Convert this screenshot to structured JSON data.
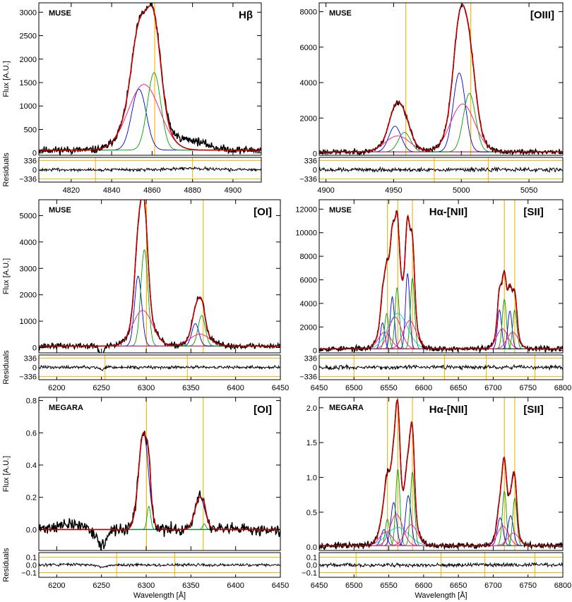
{
  "figure": {
    "xlabel": "Wavelength [Å]"
  },
  "colors": {
    "data": "#000000",
    "total_fit": "#c00000",
    "narrow": "#0000dd",
    "second": "#00a000",
    "broad": "#ff2288",
    "extra": "#00d0d0",
    "marker": "#f0b400",
    "continuum": "#3366ff"
  },
  "chart_data": [
    {
      "type": "line",
      "panel": "hb",
      "instrument": "MUSE",
      "line_label": "Hβ",
      "ylabel": "Flux [A.U.]",
      "residual_label": "Residuals",
      "xlim": [
        4804,
        4914
      ],
      "ylim": [
        -50,
        3200
      ],
      "xticks": [
        4820,
        4840,
        4860,
        4880,
        4900
      ],
      "xticklabels": [
        "4820",
        "4840",
        "4860",
        "4880",
        "4900"
      ],
      "yticks": [
        0,
        500,
        1000,
        1500,
        2000,
        2500,
        3000
      ],
      "yticklabels": [
        "0",
        "500",
        "1000",
        "1500",
        "2000",
        "2500",
        "3000"
      ],
      "markers": [
        4861.3
      ],
      "res_lim": [
        -450,
        450
      ],
      "res_ticks": [
        336,
        0,
        -336
      ],
      "res_ticklabels": [
        "336",
        "0",
        "−336"
      ],
      "res_markers": [
        4832,
        4880
      ],
      "components": [
        {
          "role": "narrow",
          "amp": 1300,
          "center": 4853.5,
          "sigma": 3.6
        },
        {
          "role": "second",
          "amp": 1650,
          "center": 4861.0,
          "sigma": 3.3
        },
        {
          "role": "broad",
          "amp": 1400,
          "center": 4856.0,
          "sigma": 7.8
        }
      ],
      "continuum": 60,
      "noise": 40,
      "noise_seed": 11,
      "res_noise": 70,
      "extra_features": [
        {
          "center": 4879,
          "amp": 200,
          "sigma": 8
        }
      ]
    },
    {
      "type": "line",
      "panel": "oiii",
      "instrument": "MUSE",
      "line_label": "[OIII]",
      "ylabel": "",
      "residual_label": "",
      "xlim": [
        4895,
        5075
      ],
      "ylim": [
        -100,
        8500
      ],
      "xticks": [
        4900,
        4950,
        5000,
        5050
      ],
      "xticklabels": [
        "4900",
        "4950",
        "5000",
        "5050"
      ],
      "yticks": [
        0,
        2000,
        4000,
        6000,
        8000
      ],
      "yticklabels": [
        "0",
        "2000",
        "4000",
        "6000",
        "8000"
      ],
      "markers": [
        4959,
        5007
      ],
      "res_lim": [
        -450,
        450
      ],
      "res_ticks": [
        336,
        0,
        -336
      ],
      "res_ticklabels": [
        "336",
        "0",
        "−336"
      ],
      "res_markers": [
        4980,
        5020
      ],
      "components": [
        {
          "role": "narrow",
          "amp": 1450,
          "center": 4951,
          "sigma": 4.5
        },
        {
          "role": "second",
          "amp": 1100,
          "center": 4958,
          "sigma": 4.5
        },
        {
          "role": "broad",
          "amp": 900,
          "center": 4953,
          "sigma": 9
        },
        {
          "role": "narrow",
          "amp": 4450,
          "center": 4998.5,
          "sigma": 4.5
        },
        {
          "role": "second",
          "amp": 3300,
          "center": 5006,
          "sigma": 4.5
        },
        {
          "role": "broad",
          "amp": 2700,
          "center": 5001,
          "sigma": 9
        }
      ],
      "continuum": 90,
      "noise": 70,
      "noise_seed": 23,
      "res_noise": 90,
      "extra_features": []
    },
    {
      "type": "line",
      "panel": "oi_muse",
      "instrument": "MUSE",
      "line_label": "[OI]",
      "ylabel": "Flux [A.U.]",
      "residual_label": "Residuals",
      "xlim": [
        6180,
        6450
      ],
      "ylim": [
        -200,
        5600
      ],
      "xticks": [
        6200,
        6250,
        6300,
        6350,
        6400,
        6450
      ],
      "xticklabels": [
        "6200",
        "6250",
        "6300",
        "6350",
        "6400",
        "6450"
      ],
      "yticks": [
        0,
        1000,
        2000,
        3000,
        4000,
        5000
      ],
      "yticklabels": [
        "0",
        "1000",
        "2000",
        "3000",
        "4000",
        "5000"
      ],
      "markers": [
        6300.3,
        6363.8
      ],
      "res_lim": [
        -450,
        450
      ],
      "res_ticks": [
        336,
        0,
        -336
      ],
      "res_ticklabels": [
        "336",
        "0",
        "−336"
      ],
      "res_markers": [
        6254,
        6346
      ],
      "components": [
        {
          "role": "narrow",
          "amp": 2650,
          "center": 6291,
          "sigma": 4
        },
        {
          "role": "second",
          "amp": 3650,
          "center": 6298,
          "sigma": 4
        },
        {
          "role": "broad",
          "amp": 1350,
          "center": 6296,
          "sigma": 11
        },
        {
          "role": "narrow",
          "amp": 850,
          "center": 6355,
          "sigma": 4
        },
        {
          "role": "second",
          "amp": 1150,
          "center": 6362,
          "sigma": 4
        },
        {
          "role": "broad",
          "amp": 450,
          "center": 6360,
          "sigma": 11
        }
      ],
      "continuum": 60,
      "noise": 55,
      "noise_seed": 37,
      "res_noise": 70,
      "extra_features": [
        {
          "center": 6250,
          "amp": -380,
          "sigma": 2.5
        }
      ]
    },
    {
      "type": "line",
      "panel": "ha_muse",
      "instrument": "MUSE",
      "line_label": "Hα-[NII]",
      "line_label2": "[SII]",
      "ylabel": "",
      "residual_label": "",
      "xlim": [
        6450,
        6800
      ],
      "ylim": [
        -200,
        12800
      ],
      "xticks": [
        6450,
        6500,
        6550,
        6600,
        6650,
        6700,
        6750,
        6800
      ],
      "xticklabels": [
        "6450",
        "6500",
        "6550",
        "6600",
        "6650",
        "6700",
        "6750",
        "6800"
      ],
      "yticks": [
        0,
        2000,
        4000,
        6000,
        8000,
        10000,
        12000
      ],
      "yticklabels": [
        "0",
        "2000",
        "4000",
        "6000",
        "8000",
        "10000",
        "12000"
      ],
      "markers": [
        6548,
        6563,
        6584,
        6716,
        6731
      ],
      "res_lim": [
        -450,
        450
      ],
      "res_ticks": [
        336,
        0,
        -336
      ],
      "res_ticklabels": [
        "336",
        "0",
        "−336"
      ],
      "res_markers": [
        6500,
        6630,
        6690,
        6760
      ],
      "components": [
        {
          "role": "narrow",
          "amp": 2200,
          "center": 6541,
          "sigma": 3
        },
        {
          "role": "second",
          "amp": 3000,
          "center": 6547,
          "sigma": 3
        },
        {
          "role": "broad",
          "amp": 1400,
          "center": 6544,
          "sigma": 9
        },
        {
          "role": "narrow",
          "amp": 4400,
          "center": 6555,
          "sigma": 3
        },
        {
          "role": "second",
          "amp": 5200,
          "center": 6562,
          "sigma": 3
        },
        {
          "role": "broad",
          "amp": 2700,
          "center": 6559,
          "sigma": 9
        },
        {
          "role": "extra",
          "amp": 3000,
          "center": 6563,
          "sigma": 14
        },
        {
          "role": "narrow",
          "amp": 6400,
          "center": 6577,
          "sigma": 3
        },
        {
          "role": "second",
          "amp": 6000,
          "center": 6584,
          "sigma": 3
        },
        {
          "role": "broad",
          "amp": 2400,
          "center": 6580,
          "sigma": 9
        },
        {
          "role": "narrow",
          "amp": 3300,
          "center": 6709,
          "sigma": 3
        },
        {
          "role": "second",
          "amp": 4200,
          "center": 6716,
          "sigma": 3
        },
        {
          "role": "broad",
          "amp": 1700,
          "center": 6713,
          "sigma": 8
        },
        {
          "role": "narrow",
          "amp": 3200,
          "center": 6724,
          "sigma": 3
        },
        {
          "role": "second",
          "amp": 3300,
          "center": 6731,
          "sigma": 3
        },
        {
          "role": "broad",
          "amp": 1400,
          "center": 6728,
          "sigma": 8
        }
      ],
      "continuum": 150,
      "noise": 110,
      "noise_seed": 53,
      "res_noise": 90,
      "extra_features": []
    },
    {
      "type": "line",
      "panel": "oi_megara",
      "instrument": "MEGARA",
      "line_label": "[OI]",
      "ylabel": "Flux [A.U.]",
      "residual_label": "Residuals",
      "xlim": [
        6180,
        6450
      ],
      "ylim": [
        -0.13,
        0.82
      ],
      "xticks": [
        6200,
        6250,
        6300,
        6350,
        6400,
        6450
      ],
      "xticklabels": [
        "6200",
        "6250",
        "6300",
        "6350",
        "6400",
        "6450"
      ],
      "yticks": [
        0.0,
        0.2,
        0.4,
        0.6,
        0.8
      ],
      "yticklabels": [
        "0.0",
        "0.2",
        "0.4",
        "0.6",
        "0.8"
      ],
      "markers": [
        6300.3,
        6363.8
      ],
      "res_lim": [
        -0.16,
        0.16
      ],
      "res_ticks": [
        0.1,
        0.0,
        -0.1
      ],
      "res_ticklabels": [
        "0.1",
        "0.0",
        "−0.1"
      ],
      "res_markers": [
        6267,
        6332
      ],
      "components": [
        {
          "role": "narrow",
          "amp": 0.6,
          "center": 6297,
          "sigma": 5.5
        },
        {
          "role": "second",
          "amp": 0.145,
          "center": 6303,
          "sigma": 2
        },
        {
          "role": "narrow",
          "amp": 0.2,
          "center": 6360,
          "sigma": 5.5
        },
        {
          "role": "second",
          "amp": 0.035,
          "center": 6365,
          "sigma": 1.8
        }
      ],
      "continuum": 0.0,
      "noise": 0.018,
      "noise_seed": 71,
      "res_noise": 0.022,
      "continuum_line": true,
      "extra_features": [
        {
          "center": 6250,
          "amp": -0.1,
          "sigma": 6
        },
        {
          "center": 6215,
          "amp": 0.03,
          "sigma": 18
        }
      ]
    },
    {
      "type": "line",
      "panel": "ha_megara",
      "instrument": "MEGARA",
      "line_label": "Hα-[NII]",
      "line_label2": "[SII]",
      "ylabel": "",
      "residual_label": "",
      "xlim": [
        6450,
        6800
      ],
      "ylim": [
        -0.05,
        2.15
      ],
      "xticks": [
        6450,
        6500,
        6550,
        6600,
        6650,
        6700,
        6750,
        6800
      ],
      "xticklabels": [
        "6450",
        "6500",
        "6550",
        "6600",
        "6650",
        "6700",
        "6750",
        "6800"
      ],
      "yticks": [
        0.0,
        0.5,
        1.0,
        1.5,
        2.0
      ],
      "yticklabels": [
        "0.0",
        "0.5",
        "1.0",
        "1.5",
        "2.0"
      ],
      "markers": [
        6548,
        6563,
        6584,
        6716,
        6731
      ],
      "res_lim": [
        -0.16,
        0.16
      ],
      "res_ticks": [
        0.1,
        0.0,
        -0.1
      ],
      "res_ticklabels": [
        "0.1",
        "0.0",
        "−0.1"
      ],
      "res_markers": [
        6503,
        6625,
        6688,
        6760
      ],
      "components": [
        {
          "role": "narrow",
          "amp": 0.23,
          "center": 6543,
          "sigma": 4
        },
        {
          "role": "second",
          "amp": 0.38,
          "center": 6548,
          "sigma": 3
        },
        {
          "role": "broad",
          "amp": 0.2,
          "center": 6546,
          "sigma": 9
        },
        {
          "role": "narrow",
          "amp": 0.62,
          "center": 6557,
          "sigma": 4
        },
        {
          "role": "second",
          "amp": 1.1,
          "center": 6563,
          "sigma": 3
        },
        {
          "role": "broad",
          "amp": 0.45,
          "center": 6561,
          "sigma": 9
        },
        {
          "role": "extra",
          "amp": 0.26,
          "center": 6563,
          "sigma": 16
        },
        {
          "role": "narrow",
          "amp": 0.72,
          "center": 6578,
          "sigma": 4
        },
        {
          "role": "second",
          "amp": 1.06,
          "center": 6584,
          "sigma": 3
        },
        {
          "role": "broad",
          "amp": 0.3,
          "center": 6582,
          "sigma": 9
        },
        {
          "role": "narrow",
          "amp": 0.4,
          "center": 6710,
          "sigma": 4
        },
        {
          "role": "second",
          "amp": 0.78,
          "center": 6716,
          "sigma": 3
        },
        {
          "role": "broad",
          "amp": 0.28,
          "center": 6714,
          "sigma": 8
        },
        {
          "role": "narrow",
          "amp": 0.43,
          "center": 6725,
          "sigma": 4
        },
        {
          "role": "second",
          "amp": 0.68,
          "center": 6731,
          "sigma": 3
        },
        {
          "role": "broad",
          "amp": 0.18,
          "center": 6729,
          "sigma": 8
        }
      ],
      "continuum": 0.02,
      "noise": 0.02,
      "noise_seed": 97,
      "res_noise": 0.03,
      "extra_features": []
    }
  ]
}
